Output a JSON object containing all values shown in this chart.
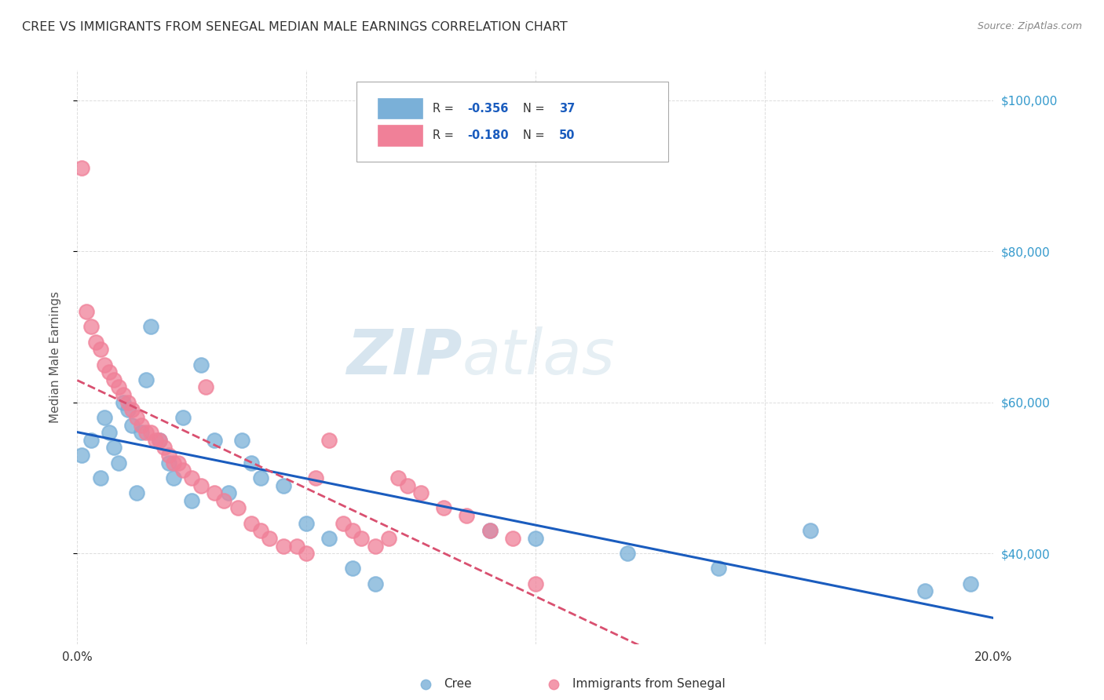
{
  "title": "CREE VS IMMIGRANTS FROM SENEGAL MEDIAN MALE EARNINGS CORRELATION CHART",
  "source": "Source: ZipAtlas.com",
  "ylabel": "Median Male Earnings",
  "yticks": [
    40000,
    60000,
    80000,
    100000
  ],
  "ytick_labels": [
    "$40,000",
    "$60,000",
    "$80,000",
    "$100,000"
  ],
  "watermark_zip": "ZIP",
  "watermark_atlas": "atlas",
  "legend_label1": "Cree",
  "legend_label2": "Immigrants from Senegal",
  "legend_r1": "R = ",
  "legend_r1_val": "-0.356",
  "legend_n1": "   N = ",
  "legend_n1_val": "37",
  "legend_r2": "R = ",
  "legend_r2_val": "-0.180",
  "legend_n2": "   N = ",
  "legend_n2_val": "50",
  "cree_color": "#7ab0d8",
  "senegal_color": "#f08098",
  "cree_line_color": "#1a5cbe",
  "senegal_line_color": "#d95070",
  "background_color": "#ffffff",
  "grid_color": "#dddddd",
  "title_color": "#333333",
  "axis_label_color": "#555555",
  "right_tick_color": "#3399cc",
  "blue_text_color": "#1a5cbe",
  "xmin": 0.0,
  "xmax": 0.2,
  "ymin": 28000,
  "ymax": 104000,
  "cree_x": [
    0.001,
    0.003,
    0.005,
    0.006,
    0.007,
    0.008,
    0.009,
    0.01,
    0.011,
    0.012,
    0.013,
    0.014,
    0.015,
    0.016,
    0.018,
    0.02,
    0.021,
    0.023,
    0.025,
    0.027,
    0.03,
    0.033,
    0.036,
    0.038,
    0.04,
    0.045,
    0.05,
    0.055,
    0.06,
    0.065,
    0.09,
    0.1,
    0.12,
    0.14,
    0.16,
    0.185,
    0.195
  ],
  "cree_y": [
    53000,
    55000,
    50000,
    58000,
    56000,
    54000,
    52000,
    60000,
    59000,
    57000,
    48000,
    56000,
    63000,
    70000,
    55000,
    52000,
    50000,
    58000,
    47000,
    65000,
    55000,
    48000,
    55000,
    52000,
    50000,
    49000,
    44000,
    42000,
    38000,
    36000,
    43000,
    42000,
    40000,
    38000,
    43000,
    35000,
    36000
  ],
  "senegal_x": [
    0.001,
    0.002,
    0.003,
    0.004,
    0.005,
    0.006,
    0.007,
    0.008,
    0.009,
    0.01,
    0.011,
    0.012,
    0.013,
    0.014,
    0.015,
    0.016,
    0.017,
    0.018,
    0.019,
    0.02,
    0.021,
    0.022,
    0.023,
    0.025,
    0.027,
    0.028,
    0.03,
    0.032,
    0.035,
    0.038,
    0.04,
    0.042,
    0.045,
    0.048,
    0.05,
    0.052,
    0.055,
    0.058,
    0.06,
    0.062,
    0.065,
    0.068,
    0.07,
    0.072,
    0.075,
    0.08,
    0.085,
    0.09,
    0.095,
    0.1
  ],
  "senegal_y": [
    91000,
    72000,
    70000,
    68000,
    67000,
    65000,
    64000,
    63000,
    62000,
    61000,
    60000,
    59000,
    58000,
    57000,
    56000,
    56000,
    55000,
    55000,
    54000,
    53000,
    52000,
    52000,
    51000,
    50000,
    49000,
    62000,
    48000,
    47000,
    46000,
    44000,
    43000,
    42000,
    41000,
    41000,
    40000,
    50000,
    55000,
    44000,
    43000,
    42000,
    41000,
    42000,
    50000,
    49000,
    48000,
    46000,
    45000,
    43000,
    42000,
    36000
  ]
}
